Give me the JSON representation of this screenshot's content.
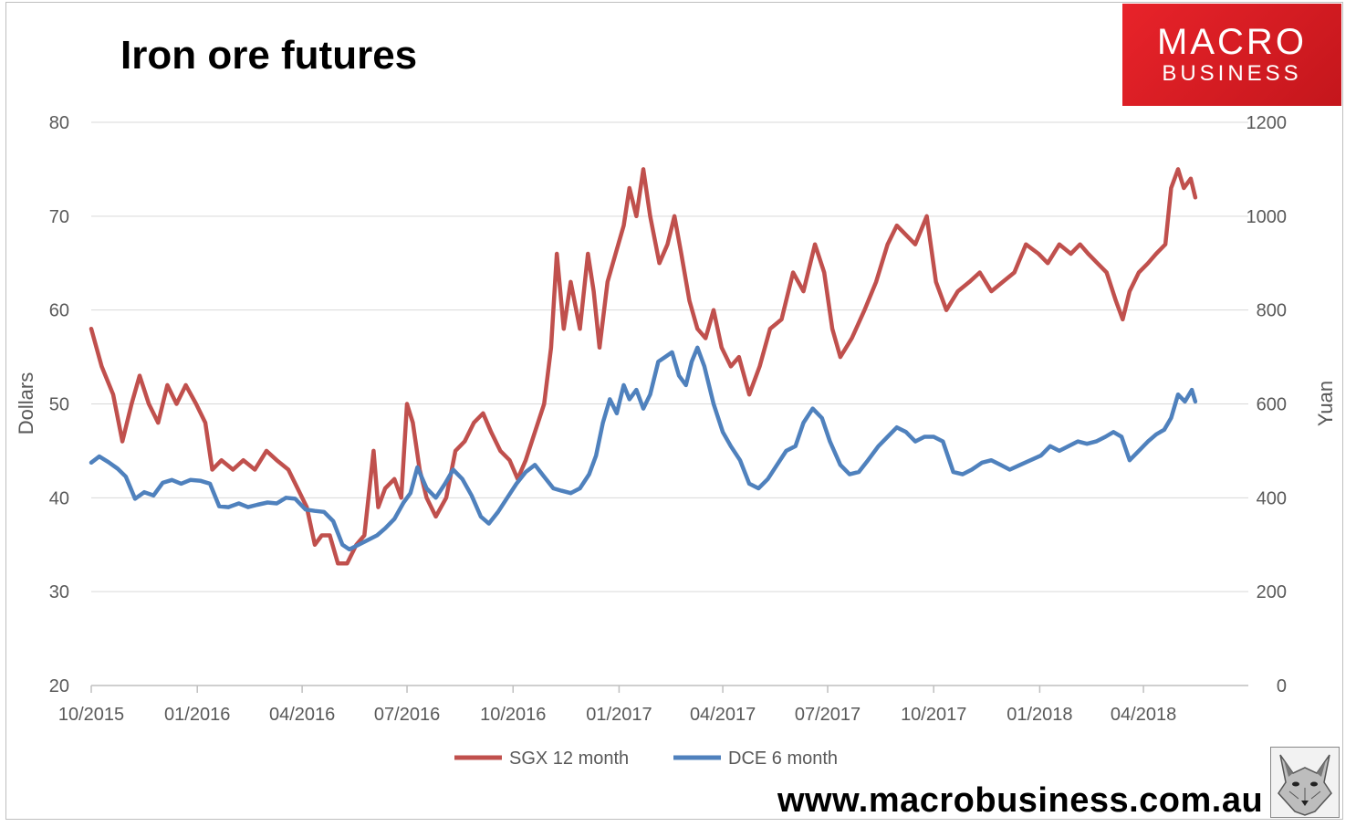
{
  "header": {
    "title": "Iron ore futures",
    "logo_line1": "MACRO",
    "logo_line2": "BUSINESS",
    "website": "www.macrobusiness.com.au"
  },
  "chart_data": {
    "type": "line",
    "title": "Iron ore futures",
    "x_ticks": [
      "10/2015",
      "01/2016",
      "04/2016",
      "07/2016",
      "10/2016",
      "01/2017",
      "04/2017",
      "07/2017",
      "10/2017",
      "01/2018",
      "04/2018"
    ],
    "x_range": [
      "2015-10",
      "2018-07"
    ],
    "y_left": {
      "label": "Dollars",
      "min": 20,
      "max": 80,
      "ticks": [
        20,
        30,
        40,
        50,
        60,
        70,
        80
      ]
    },
    "y_right": {
      "label": "Yuan",
      "min": 0,
      "max": 1200,
      "ticks": [
        0,
        200,
        400,
        600,
        800,
        1000,
        1200
      ]
    },
    "grid": true,
    "legend_position": "bottom",
    "series": [
      {
        "name": "SGX 12 month",
        "axis": "left",
        "color": "#c0504d",
        "points": [
          [
            "2015-10-01",
            58
          ],
          [
            "2015-10-10",
            54
          ],
          [
            "2015-10-20",
            51
          ],
          [
            "2015-10-28",
            46
          ],
          [
            "2015-11-05",
            50
          ],
          [
            "2015-11-12",
            53
          ],
          [
            "2015-11-20",
            50
          ],
          [
            "2015-11-28",
            48
          ],
          [
            "2015-12-06",
            52
          ],
          [
            "2015-12-14",
            50
          ],
          [
            "2015-12-22",
            52
          ],
          [
            "2015-12-31",
            50
          ],
          [
            "2016-01-08",
            48
          ],
          [
            "2016-01-14",
            43
          ],
          [
            "2016-01-22",
            44
          ],
          [
            "2016-02-01",
            43
          ],
          [
            "2016-02-10",
            44
          ],
          [
            "2016-02-20",
            43
          ],
          [
            "2016-03-01",
            45
          ],
          [
            "2016-03-10",
            44
          ],
          [
            "2016-03-20",
            43
          ],
          [
            "2016-03-28",
            41
          ],
          [
            "2016-04-05",
            39
          ],
          [
            "2016-04-12",
            35
          ],
          [
            "2016-04-18",
            36
          ],
          [
            "2016-04-25",
            36
          ],
          [
            "2016-05-02",
            33
          ],
          [
            "2016-05-10",
            33
          ],
          [
            "2016-05-18",
            35
          ],
          [
            "2016-05-25",
            36
          ],
          [
            "2016-06-02",
            45
          ],
          [
            "2016-06-06",
            39
          ],
          [
            "2016-06-12",
            41
          ],
          [
            "2016-06-20",
            42
          ],
          [
            "2016-06-26",
            40
          ],
          [
            "2016-07-01",
            50
          ],
          [
            "2016-07-06",
            48
          ],
          [
            "2016-07-12",
            43
          ],
          [
            "2016-07-18",
            40
          ],
          [
            "2016-07-26",
            38
          ],
          [
            "2016-08-04",
            40
          ],
          [
            "2016-08-12",
            45
          ],
          [
            "2016-08-20",
            46
          ],
          [
            "2016-08-28",
            48
          ],
          [
            "2016-09-05",
            49
          ],
          [
            "2016-09-12",
            47
          ],
          [
            "2016-09-20",
            45
          ],
          [
            "2016-09-28",
            44
          ],
          [
            "2016-10-05",
            42
          ],
          [
            "2016-10-12",
            44
          ],
          [
            "2016-10-20",
            47
          ],
          [
            "2016-10-28",
            50
          ],
          [
            "2016-11-03",
            56
          ],
          [
            "2016-11-08",
            66
          ],
          [
            "2016-11-14",
            58
          ],
          [
            "2016-11-20",
            63
          ],
          [
            "2016-11-28",
            58
          ],
          [
            "2016-12-05",
            66
          ],
          [
            "2016-12-10",
            62
          ],
          [
            "2016-12-15",
            56
          ],
          [
            "2016-12-22",
            63
          ],
          [
            "2016-12-29",
            66
          ],
          [
            "2017-01-05",
            69
          ],
          [
            "2017-01-10",
            73
          ],
          [
            "2017-01-16",
            70
          ],
          [
            "2017-01-22",
            75
          ],
          [
            "2017-01-28",
            70
          ],
          [
            "2017-02-05",
            65
          ],
          [
            "2017-02-12",
            67
          ],
          [
            "2017-02-18",
            70
          ],
          [
            "2017-02-24",
            66
          ],
          [
            "2017-03-03",
            61
          ],
          [
            "2017-03-10",
            58
          ],
          [
            "2017-03-17",
            57
          ],
          [
            "2017-03-24",
            60
          ],
          [
            "2017-03-31",
            56
          ],
          [
            "2017-04-08",
            54
          ],
          [
            "2017-04-15",
            55
          ],
          [
            "2017-04-24",
            51
          ],
          [
            "2017-05-03",
            54
          ],
          [
            "2017-05-12",
            58
          ],
          [
            "2017-05-22",
            59
          ],
          [
            "2017-06-01",
            64
          ],
          [
            "2017-06-10",
            62
          ],
          [
            "2017-06-20",
            67
          ],
          [
            "2017-06-28",
            64
          ],
          [
            "2017-07-05",
            58
          ],
          [
            "2017-07-12",
            55
          ],
          [
            "2017-07-22",
            57
          ],
          [
            "2017-08-02",
            60
          ],
          [
            "2017-08-12",
            63
          ],
          [
            "2017-08-22",
            67
          ],
          [
            "2017-08-30",
            69
          ],
          [
            "2017-09-07",
            68
          ],
          [
            "2017-09-15",
            67
          ],
          [
            "2017-09-25",
            70
          ],
          [
            "2017-10-03",
            63
          ],
          [
            "2017-10-12",
            60
          ],
          [
            "2017-10-22",
            62
          ],
          [
            "2017-11-01",
            63
          ],
          [
            "2017-11-10",
            64
          ],
          [
            "2017-11-20",
            62
          ],
          [
            "2017-11-30",
            63
          ],
          [
            "2017-12-10",
            64
          ],
          [
            "2017-12-20",
            67
          ],
          [
            "2017-12-31",
            66
          ],
          [
            "2018-01-08",
            65
          ],
          [
            "2018-01-18",
            67
          ],
          [
            "2018-01-28",
            66
          ],
          [
            "2018-02-05",
            67
          ],
          [
            "2018-02-12",
            66
          ],
          [
            "2018-02-20",
            65
          ],
          [
            "2018-02-28",
            64
          ],
          [
            "2018-03-08",
            61
          ],
          [
            "2018-03-14",
            59
          ],
          [
            "2018-03-20",
            62
          ],
          [
            "2018-03-28",
            64
          ],
          [
            "2018-04-05",
            65
          ],
          [
            "2018-04-12",
            66
          ],
          [
            "2018-04-20",
            67
          ],
          [
            "2018-04-25",
            73
          ],
          [
            "2018-05-01",
            75
          ],
          [
            "2018-05-06",
            73
          ],
          [
            "2018-05-12",
            74
          ],
          [
            "2018-05-16",
            72
          ]
        ]
      },
      {
        "name": "DCE 6 month",
        "axis": "right",
        "color": "#4f81bd",
        "points": [
          [
            "2015-10-01",
            475
          ],
          [
            "2015-10-08",
            488
          ],
          [
            "2015-10-16",
            476
          ],
          [
            "2015-10-24",
            462
          ],
          [
            "2015-10-31",
            445
          ],
          [
            "2015-11-08",
            398
          ],
          [
            "2015-11-16",
            412
          ],
          [
            "2015-11-24",
            405
          ],
          [
            "2015-12-02",
            432
          ],
          [
            "2015-12-10",
            438
          ],
          [
            "2015-12-18",
            430
          ],
          [
            "2015-12-26",
            438
          ],
          [
            "2016-01-04",
            436
          ],
          [
            "2016-01-12",
            430
          ],
          [
            "2016-01-20",
            382
          ],
          [
            "2016-01-28",
            380
          ],
          [
            "2016-02-06",
            388
          ],
          [
            "2016-02-14",
            380
          ],
          [
            "2016-02-22",
            385
          ],
          [
            "2016-03-02",
            390
          ],
          [
            "2016-03-10",
            388
          ],
          [
            "2016-03-18",
            400
          ],
          [
            "2016-03-26",
            398
          ],
          [
            "2016-04-04",
            375
          ],
          [
            "2016-04-12",
            372
          ],
          [
            "2016-04-20",
            370
          ],
          [
            "2016-04-28",
            350
          ],
          [
            "2016-05-06",
            300
          ],
          [
            "2016-05-12",
            290
          ],
          [
            "2016-05-20",
            300
          ],
          [
            "2016-05-28",
            310
          ],
          [
            "2016-06-05",
            320
          ],
          [
            "2016-06-12",
            335
          ],
          [
            "2016-06-20",
            355
          ],
          [
            "2016-06-28",
            390
          ],
          [
            "2016-07-04",
            410
          ],
          [
            "2016-07-10",
            465
          ],
          [
            "2016-07-18",
            420
          ],
          [
            "2016-07-26",
            400
          ],
          [
            "2016-08-03",
            430
          ],
          [
            "2016-08-10",
            460
          ],
          [
            "2016-08-18",
            440
          ],
          [
            "2016-08-26",
            405
          ],
          [
            "2016-09-03",
            360
          ],
          [
            "2016-09-10",
            345
          ],
          [
            "2016-09-18",
            370
          ],
          [
            "2016-09-26",
            400
          ],
          [
            "2016-10-04",
            430
          ],
          [
            "2016-10-12",
            455
          ],
          [
            "2016-10-20",
            470
          ],
          [
            "2016-10-28",
            445
          ],
          [
            "2016-11-05",
            420
          ],
          [
            "2016-11-12",
            415
          ],
          [
            "2016-11-20",
            410
          ],
          [
            "2016-11-28",
            420
          ],
          [
            "2016-12-06",
            450
          ],
          [
            "2016-12-12",
            490
          ],
          [
            "2016-12-18",
            560
          ],
          [
            "2016-12-24",
            610
          ],
          [
            "2016-12-30",
            580
          ],
          [
            "2017-01-05",
            640
          ],
          [
            "2017-01-10",
            610
          ],
          [
            "2017-01-16",
            630
          ],
          [
            "2017-01-22",
            590
          ],
          [
            "2017-01-28",
            620
          ],
          [
            "2017-02-04",
            690
          ],
          [
            "2017-02-10",
            700
          ],
          [
            "2017-02-16",
            710
          ],
          [
            "2017-02-22",
            660
          ],
          [
            "2017-02-28",
            640
          ],
          [
            "2017-03-05",
            690
          ],
          [
            "2017-03-10",
            720
          ],
          [
            "2017-03-16",
            680
          ],
          [
            "2017-03-24",
            600
          ],
          [
            "2017-04-01",
            540
          ],
          [
            "2017-04-08",
            510
          ],
          [
            "2017-04-16",
            480
          ],
          [
            "2017-04-24",
            430
          ],
          [
            "2017-05-02",
            420
          ],
          [
            "2017-05-10",
            440
          ],
          [
            "2017-05-18",
            470
          ],
          [
            "2017-05-26",
            500
          ],
          [
            "2017-06-03",
            510
          ],
          [
            "2017-06-10",
            560
          ],
          [
            "2017-06-18",
            590
          ],
          [
            "2017-06-26",
            570
          ],
          [
            "2017-07-03",
            520
          ],
          [
            "2017-07-12",
            470
          ],
          [
            "2017-07-20",
            450
          ],
          [
            "2017-07-28",
            455
          ],
          [
            "2017-08-05",
            480
          ],
          [
            "2017-08-14",
            510
          ],
          [
            "2017-08-22",
            530
          ],
          [
            "2017-08-30",
            550
          ],
          [
            "2017-09-07",
            540
          ],
          [
            "2017-09-15",
            520
          ],
          [
            "2017-09-23",
            530
          ],
          [
            "2017-10-01",
            530
          ],
          [
            "2017-10-09",
            520
          ],
          [
            "2017-10-18",
            455
          ],
          [
            "2017-10-26",
            450
          ],
          [
            "2017-11-03",
            460
          ],
          [
            "2017-11-12",
            475
          ],
          [
            "2017-11-20",
            480
          ],
          [
            "2017-11-28",
            470
          ],
          [
            "2017-12-06",
            460
          ],
          [
            "2017-12-15",
            470
          ],
          [
            "2017-12-24",
            480
          ],
          [
            "2018-01-02",
            490
          ],
          [
            "2018-01-10",
            510
          ],
          [
            "2018-01-18",
            500
          ],
          [
            "2018-01-26",
            510
          ],
          [
            "2018-02-03",
            520
          ],
          [
            "2018-02-11",
            515
          ],
          [
            "2018-02-19",
            520
          ],
          [
            "2018-02-27",
            530
          ],
          [
            "2018-03-06",
            540
          ],
          [
            "2018-03-13",
            530
          ],
          [
            "2018-03-20",
            480
          ],
          [
            "2018-03-28",
            500
          ],
          [
            "2018-04-05",
            520
          ],
          [
            "2018-04-12",
            535
          ],
          [
            "2018-04-19",
            545
          ],
          [
            "2018-04-25",
            570
          ],
          [
            "2018-05-01",
            620
          ],
          [
            "2018-05-07",
            605
          ],
          [
            "2018-05-13",
            630
          ],
          [
            "2018-05-16",
            605
          ]
        ]
      }
    ]
  }
}
